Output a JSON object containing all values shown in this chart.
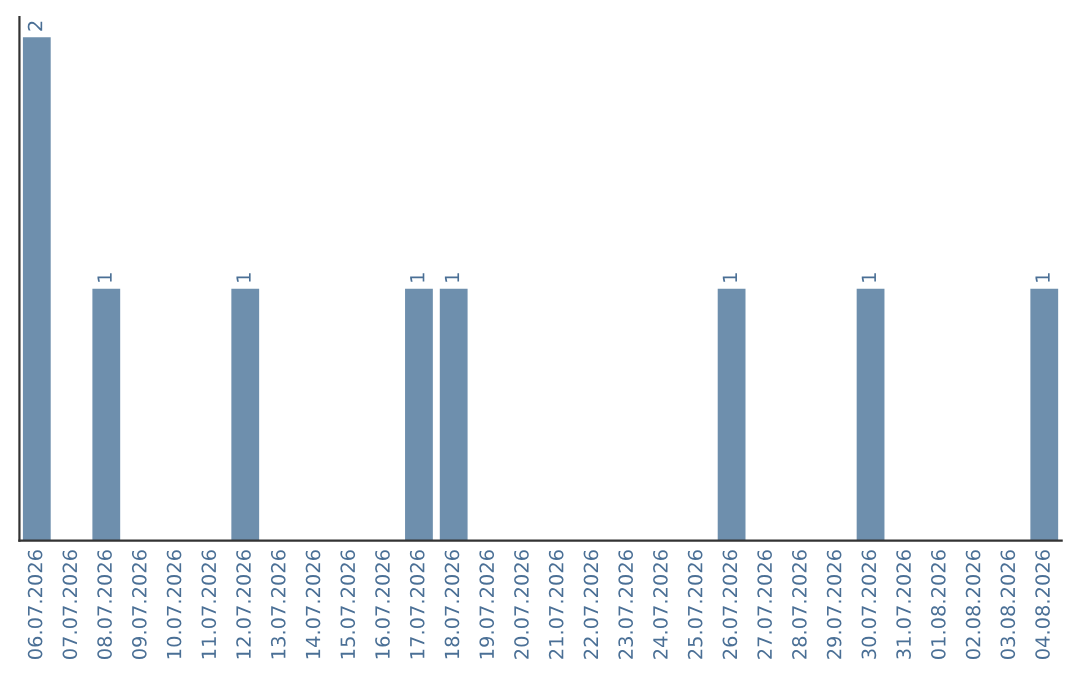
{
  "chart_data": {
    "type": "bar",
    "categories": [
      "06.07.2026",
      "07.07.2026",
      "08.07.2026",
      "09.07.2026",
      "10.07.2026",
      "11.07.2026",
      "12.07.2026",
      "13.07.2026",
      "14.07.2026",
      "15.07.2026",
      "16.07.2026",
      "17.07.2026",
      "18.07.2026",
      "19.07.2026",
      "20.07.2026",
      "21.07.2026",
      "22.07.2026",
      "23.07.2026",
      "24.07.2026",
      "25.07.2026",
      "26.07.2026",
      "27.07.2026",
      "28.07.2026",
      "29.07.2026",
      "30.07.2026",
      "31.07.2026",
      "01.08.2026",
      "02.08.2026",
      "03.08.2026",
      "04.08.2026"
    ],
    "values": [
      2,
      0,
      1,
      0,
      0,
      0,
      1,
      0,
      0,
      0,
      0,
      1,
      1,
      0,
      0,
      0,
      0,
      0,
      0,
      0,
      1,
      0,
      0,
      0,
      1,
      0,
      0,
      0,
      0,
      1
    ],
    "value_labels": [
      "2",
      null,
      "1",
      null,
      null,
      null,
      "1",
      null,
      null,
      null,
      null,
      "1",
      "1",
      null,
      null,
      null,
      null,
      null,
      null,
      null,
      "1",
      null,
      null,
      null,
      "1",
      null,
      null,
      null,
      null,
      "1"
    ],
    "color": "#6e8fad",
    "tick_labels": "x",
    "grid": false,
    "legend": false
  }
}
